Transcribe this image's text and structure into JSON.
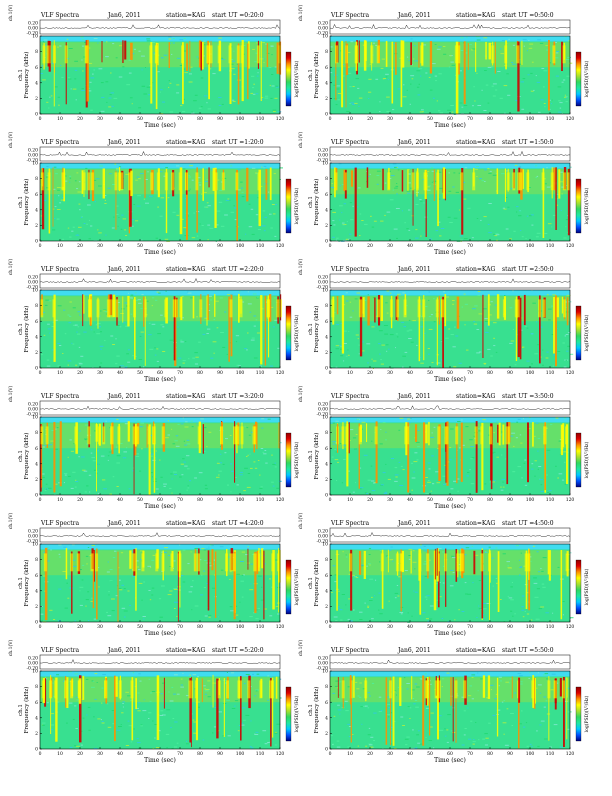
{
  "title": "VLF Spectra",
  "date": "Jan6, 2011",
  "station": "station=KAG",
  "start_prefix": "start UT =",
  "channel_label": "ch.1",
  "waveform_unit": "(V)",
  "chart_data": {
    "type": "heatmap",
    "xlabel": "Time (sec)",
    "ylabel": "Frequency (kHz)",
    "colorbar_label": "log(PSD)(V²/Hz)",
    "xlim": [
      0,
      120
    ],
    "ylim": [
      0,
      10
    ],
    "xticks": [
      "0",
      "10",
      "20",
      "30",
      "40",
      "50",
      "60",
      "70",
      "80",
      "90",
      "100",
      "110",
      "120"
    ],
    "yticks": [
      "0",
      "2",
      "4",
      "6",
      "8",
      "10"
    ],
    "waveform_ticks": [
      "0.20",
      "0.00",
      "-0.20"
    ],
    "panels": [
      {
        "start": "0:20:0"
      },
      {
        "start": "0:50:0"
      },
      {
        "start": "1:20:0"
      },
      {
        "start": "1:50:0"
      },
      {
        "start": "2:20:0"
      },
      {
        "start": "2:50:0"
      },
      {
        "start": "3:20:0"
      },
      {
        "start": "3:50:0"
      },
      {
        "start": "4:20:0"
      },
      {
        "start": "4:50:0"
      },
      {
        "start": "5:20:0"
      },
      {
        "start": "5:50:0"
      }
    ],
    "colormap": [
      "#00007f",
      "#0050ff",
      "#00c8ff",
      "#20e8a0",
      "#30d860",
      "#a8e030",
      "#ffff00",
      "#ff9000",
      "#e00000",
      "#900000"
    ]
  }
}
